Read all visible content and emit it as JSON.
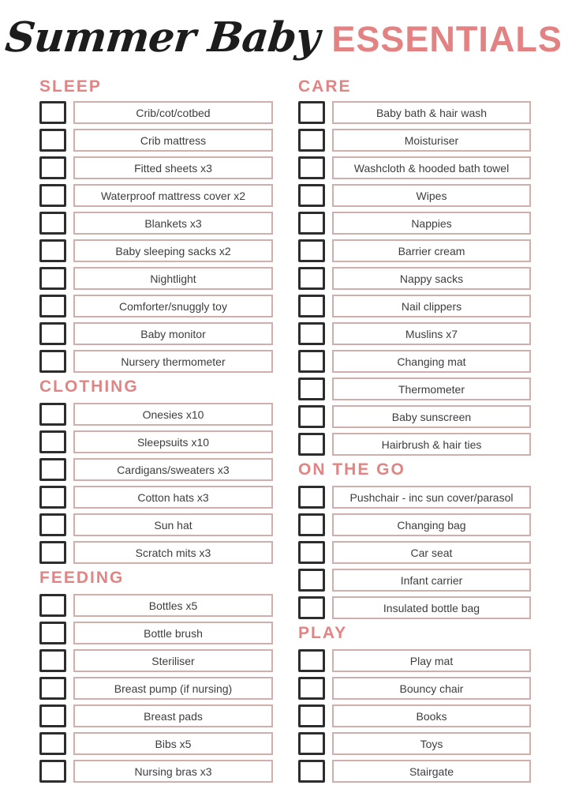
{
  "title": {
    "script_text": "Summer Baby",
    "accent_text": "ESSENTIALS"
  },
  "colors": {
    "accent_pink": "#e28282",
    "heading_pink": "#e08484",
    "label_box_border": "#cfaeac",
    "checkbox_border": "#2d2d2d",
    "item_text": "#3d3d3d",
    "background": "#ffffff"
  },
  "checkboxes_all_state": "unchecked",
  "columns": [
    {
      "name": "left",
      "sections": [
        {
          "heading": "SLEEP",
          "items": [
            "Crib/cot/cotbed",
            "Crib mattress",
            "Fitted sheets x3",
            "Waterproof mattress cover x2",
            "Blankets x3",
            "Baby sleeping sacks x2",
            "Nightlight",
            "Comforter/snuggly toy",
            "Baby monitor",
            "Nursery thermometer"
          ]
        },
        {
          "heading": "CLOTHING",
          "items": [
            "Onesies x10",
            "Sleepsuits x10",
            "Cardigans/sweaters x3",
            "Cotton hats x3",
            "Sun hat",
            "Scratch mits x3"
          ]
        },
        {
          "heading": "FEEDING",
          "items": [
            "Bottles x5",
            "Bottle brush",
            "Steriliser",
            "Breast pump (if nursing)",
            "Breast pads",
            "Bibs x5",
            "Nursing bras x3"
          ]
        }
      ]
    },
    {
      "name": "right",
      "sections": [
        {
          "heading": "CARE",
          "items": [
            "Baby bath & hair wash",
            "Moisturiser",
            "Washcloth & hooded bath towel",
            "Wipes",
            "Nappies",
            "Barrier cream",
            "Nappy sacks",
            "Nail clippers",
            "Muslins x7",
            "Changing mat",
            "Thermometer",
            "Baby sunscreen",
            "Hairbrush & hair ties"
          ]
        },
        {
          "heading": "ON THE GO",
          "items": [
            "Pushchair - inc sun cover/parasol",
            "Changing bag",
            "Car seat",
            "Infant carrier",
            "Insulated bottle bag"
          ]
        },
        {
          "heading": "PLAY",
          "items": [
            "Play mat",
            "Bouncy chair",
            "Books",
            "Toys",
            "Stairgate"
          ]
        }
      ]
    }
  ]
}
